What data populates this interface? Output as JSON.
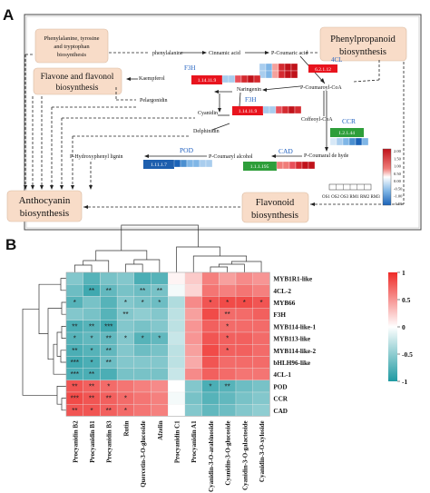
{
  "panel_a": {
    "label": "A",
    "box_top_left": [
      "Phenylalanine, tyrosine",
      "and tryptophan",
      "biosynthesis"
    ],
    "box_phenylpropanoid": [
      "Phenylpropanoid",
      "biosynthesis"
    ],
    "box_flavone": [
      "Flavone and flavonol",
      "biosynthesis"
    ],
    "box_anthocyanin": [
      "Anthocyanin",
      "biosynthesis"
    ],
    "box_flavonoid": [
      "Flavonoid",
      "biosynthesis"
    ],
    "compounds": {
      "phenylalanine": "phenylalanine",
      "cinnamic_acid": "Cinnamic acid",
      "p_coumaric_acid": "P-Coumaric acid",
      "kaempferol": "Kaempferol",
      "naringenin": "Naringenin",
      "p_coumaroyl_coa": "P-Coumaroyl-CoA",
      "pelargonidin": "Pelargonidin",
      "cyanidin": "Cyanidin",
      "caffeoyl_coa": "Coffeoyl-CoA",
      "delphinidin": "Delphinidin",
      "p_hydroxyphenyl_lignin": "P-Hydroxyphenyl lignin",
      "p_coumaryl_alcohol": "P-Coumaryl alcohol",
      "p_coumaraldehyde": "P-Coumaral de hyde"
    },
    "enzymes": {
      "4cl_name": "4CL",
      "4cl_ec": "6.2.1.12",
      "f3h_name_1": "F3H",
      "f3h_ec_1": "1.14.11.9",
      "f3h_name_2": "F3H",
      "f3h_ec_2": "1.14.11.9",
      "ccr_name": "CCR",
      "ccr_ec": "1.2.1.44",
      "cad_name": "CAD",
      "cad_ec": "1.1.1.195",
      "pod_name": "POD",
      "pod_ec": "1.11.1.7"
    },
    "legend": {
      "ticks": [
        "2.00",
        "1.50",
        "1.00",
        "0.50",
        "0.00",
        "-0.50",
        "-1.00",
        "-1.50"
      ],
      "samples": "OS1 OS2 OS3 RM1 RM2 RM3"
    },
    "colors": {
      "box_fill": "#f8dcc8",
      "enzyme_red": "#e8141e",
      "enzyme_green": "#2e9e3a",
      "enzyme_blue": "#1e5fae",
      "enzyme_name_blue": "#2060c0"
    }
  },
  "panel_b": {
    "label": "B",
    "chart_data": {
      "type": "heatmap",
      "rows": [
        "MYB1R1-like",
        "4CL-2",
        "MYB66",
        "F3H",
        "MYB114-like-1",
        "MYB113-like",
        "MYB114-like-2",
        "bHLH96-like",
        "4CL-1",
        "POD",
        "CCR",
        "CAD"
      ],
      "columns": [
        "Procyanidin B2",
        "Procyanidin B1",
        "Procyanidin B3",
        "Rutin",
        "Quercetin-3-O-glucoside",
        "Afzelin",
        "Procyanidin C1",
        "Procyanidin A1",
        "Cyanidin-3-O-arabinoside",
        "Cyanidin-3-O-glucoside",
        "Cyanidin-3-O-galactoside",
        "Cyanidin-3-O-xyloside"
      ],
      "values": [
        [
          -0.55,
          -0.75,
          -0.6,
          -0.55,
          -0.8,
          -0.75,
          0.05,
          0.25,
          0.6,
          0.45,
          0.55,
          0.5
        ],
        [
          -0.65,
          -0.85,
          -0.7,
          -0.6,
          -0.65,
          -0.6,
          -0.05,
          0.2,
          0.65,
          0.6,
          0.65,
          0.6
        ],
        [
          -0.75,
          -0.6,
          -0.75,
          -0.55,
          -0.6,
          -0.65,
          -0.35,
          0.55,
          0.8,
          0.85,
          0.85,
          0.8
        ],
        [
          -0.55,
          -0.6,
          -0.75,
          -0.55,
          -0.5,
          -0.55,
          -0.3,
          0.45,
          0.85,
          0.7,
          0.7,
          0.75
        ],
        [
          -0.8,
          -0.75,
          -0.85,
          -0.55,
          -0.6,
          -0.55,
          -0.3,
          0.5,
          0.75,
          0.7,
          0.7,
          0.7
        ],
        [
          -0.75,
          -0.7,
          -0.7,
          -0.55,
          -0.75,
          -0.7,
          -0.25,
          0.5,
          0.8,
          0.75,
          0.75,
          0.7
        ],
        [
          -0.8,
          -0.75,
          -0.7,
          -0.55,
          -0.65,
          -0.6,
          -0.3,
          0.45,
          0.85,
          0.75,
          0.75,
          0.7
        ],
        [
          -0.85,
          -0.8,
          -0.65,
          -0.55,
          -0.55,
          -0.55,
          -0.3,
          0.4,
          0.8,
          0.7,
          0.7,
          0.7
        ],
        [
          -0.8,
          -0.8,
          -0.8,
          -0.6,
          -0.6,
          -0.6,
          -0.25,
          0.55,
          0.75,
          0.7,
          0.65,
          0.65
        ],
        [
          0.8,
          0.75,
          0.7,
          0.65,
          0.6,
          0.55,
          0.0,
          -0.55,
          -0.8,
          -0.75,
          -0.65,
          -0.6
        ],
        [
          0.85,
          0.8,
          0.75,
          0.7,
          0.65,
          0.6,
          -0.05,
          -0.6,
          -0.75,
          -0.7,
          -0.6,
          -0.55
        ],
        [
          0.8,
          0.8,
          0.75,
          0.7,
          0.65,
          0.6,
          0.0,
          -0.55,
          -0.7,
          -0.65,
          -0.55,
          -0.5
        ]
      ],
      "significance": [
        [
          "",
          "",
          "",
          "",
          "",
          "",
          "",
          "",
          "",
          "",
          "",
          ""
        ],
        [
          "",
          "**",
          "**",
          "",
          "**",
          "**",
          "",
          "",
          "",
          "",
          "",
          ""
        ],
        [
          "*",
          "",
          "",
          "*",
          "*",
          "*",
          "",
          "",
          "*",
          "*",
          "*",
          "*"
        ],
        [
          "",
          "",
          "",
          "**",
          "",
          "",
          "",
          "",
          "",
          "**",
          "",
          ""
        ],
        [
          "**",
          "**",
          "***",
          "",
          "",
          "",
          "",
          "",
          "",
          "*",
          "",
          ""
        ],
        [
          "*",
          "*",
          "**",
          "*",
          "*",
          "*",
          "",
          "",
          "",
          "*",
          "",
          ""
        ],
        [
          "**",
          "*",
          "**",
          "",
          "",
          "",
          "",
          "",
          "",
          "*",
          "",
          ""
        ],
        [
          "***",
          "*",
          "**",
          "",
          "",
          "",
          "",
          "",
          "",
          "",
          "",
          ""
        ],
        [
          "***",
          "**",
          "",
          "",
          "",
          "",
          "",
          "",
          "",
          "",
          "",
          ""
        ],
        [
          "**",
          "**",
          "*",
          "",
          "",
          "",
          "",
          "",
          "*",
          "**",
          "",
          ""
        ],
        [
          "***",
          "**",
          "**",
          "*",
          "",
          "",
          "",
          "",
          "",
          "",
          "",
          ""
        ],
        [
          "**",
          "*",
          "**",
          "*",
          "",
          "",
          "",
          "",
          "",
          "",
          "",
          ""
        ]
      ],
      "colorbar_ticks": [
        "1",
        "0.5",
        "0",
        "-0.5",
        "-1"
      ],
      "color_range": [
        -1,
        1
      ],
      "colors": {
        "low": "#1e9aa2",
        "mid": "#ffffff",
        "high": "#ee2b28"
      }
    }
  }
}
